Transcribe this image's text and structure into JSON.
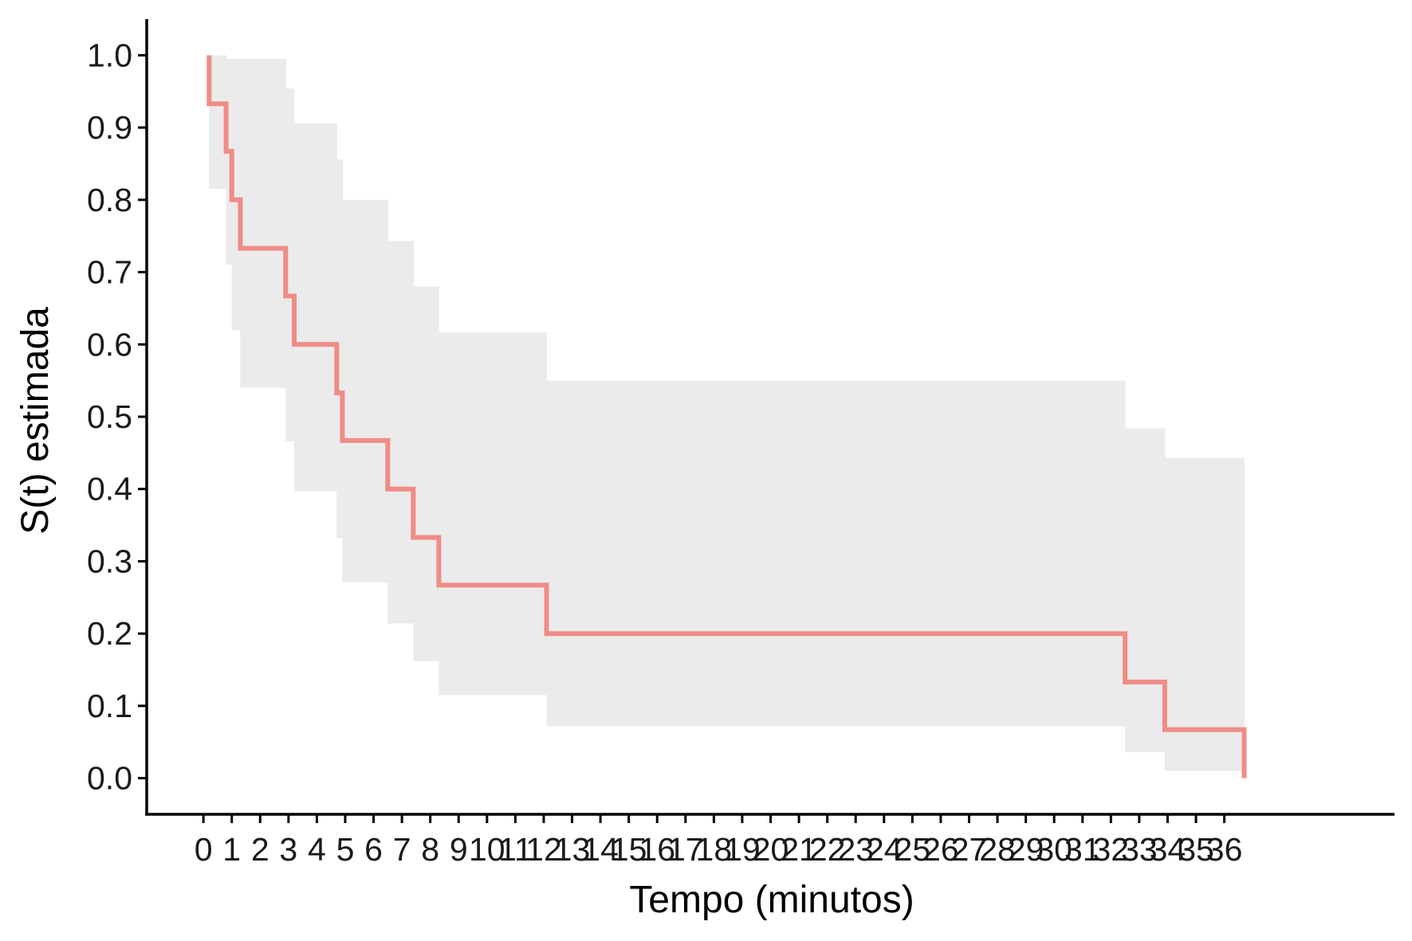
{
  "chart_data": {
    "type": "line",
    "xlabel": "Tempo (minutos)",
    "ylabel": "S(t) estimada",
    "xlim": [
      -2,
      42
    ],
    "ylim": [
      -0.05,
      1.05
    ],
    "x_ticks": [
      0,
      1,
      2,
      3,
      4,
      5,
      6,
      7,
      8,
      9,
      10,
      11,
      12,
      13,
      14,
      15,
      16,
      17,
      18,
      19,
      20,
      21,
      22,
      23,
      24,
      25,
      26,
      27,
      28,
      29,
      30,
      31,
      32,
      33,
      34,
      35,
      36
    ],
    "y_ticks": [
      0.0,
      0.1,
      0.2,
      0.3,
      0.4,
      0.5,
      0.6,
      0.7,
      0.8,
      0.9,
      1.0
    ],
    "y_tick_labels": [
      "0.0",
      "0.1",
      "0.2",
      "0.3",
      "0.4",
      "0.5",
      "0.6",
      "0.7",
      "0.8",
      "0.9",
      "1.0"
    ],
    "grid": false,
    "legend": "none",
    "colors": {
      "survival_line": "#F08C86",
      "confidence_band": "#EBEBEB",
      "axis": "#000000"
    },
    "series": [
      {
        "style": "step",
        "x": [
          0.2,
          0.2,
          0.8,
          0.8,
          1.0,
          1.0,
          1.3,
          1.3,
          2.9,
          2.9,
          3.2,
          3.2,
          4.7,
          4.7,
          4.9,
          4.9,
          6.5,
          6.5,
          7.4,
          7.4,
          8.3,
          8.3,
          12.1,
          12.1,
          32.5,
          32.5,
          33.9,
          33.9,
          36.7,
          36.7
        ],
        "y": [
          1.0,
          0.933,
          0.933,
          0.867,
          0.867,
          0.8,
          0.8,
          0.733,
          0.733,
          0.667,
          0.667,
          0.6,
          0.6,
          0.533,
          0.533,
          0.467,
          0.467,
          0.4,
          0.4,
          0.333,
          0.333,
          0.267,
          0.267,
          0.2,
          0.2,
          0.133,
          0.133,
          0.067,
          0.067,
          0.0
        ]
      }
    ],
    "confidence_band": [
      {
        "x0": 0.2,
        "x1": 0.5,
        "lower": 0.815,
        "upper": 1.0
      },
      {
        "x0": 0.5,
        "x1": 0.8,
        "lower": 0.815,
        "upper": 1.0
      },
      {
        "x0": 0.8,
        "x1": 1.0,
        "lower": 0.71,
        "upper": 0.995
      },
      {
        "x0": 1.0,
        "x1": 1.3,
        "lower": 0.62,
        "upper": 0.995
      },
      {
        "x0": 1.3,
        "x1": 2.9,
        "lower": 0.54,
        "upper": 0.995
      },
      {
        "x0": 2.9,
        "x1": 3.2,
        "lower": 0.466,
        "upper": 0.954
      },
      {
        "x0": 3.2,
        "x1": 4.7,
        "lower": 0.397,
        "upper": 0.906
      },
      {
        "x0": 4.7,
        "x1": 4.9,
        "lower": 0.332,
        "upper": 0.856
      },
      {
        "x0": 4.9,
        "x1": 6.5,
        "lower": 0.271,
        "upper": 0.8
      },
      {
        "x0": 6.5,
        "x1": 7.4,
        "lower": 0.214,
        "upper": 0.743
      },
      {
        "x0": 7.4,
        "x1": 8.3,
        "lower": 0.162,
        "upper": 0.68
      },
      {
        "x0": 8.3,
        "x1": 12.1,
        "lower": 0.115,
        "upper": 0.617
      },
      {
        "x0": 12.1,
        "x1": 32.5,
        "lower": 0.072,
        "upper": 0.55
      },
      {
        "x0": 32.5,
        "x1": 33.9,
        "lower": 0.036,
        "upper": 0.484
      },
      {
        "x0": 33.9,
        "x1": 36.7,
        "lower": 0.01,
        "upper": 0.443
      }
    ]
  }
}
